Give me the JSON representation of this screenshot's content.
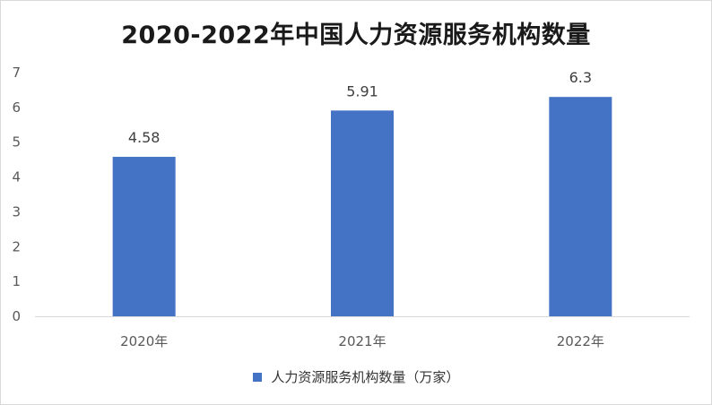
{
  "chart_data": {
    "type": "bar",
    "title": "2020-2022年中国人力资源服务机构数量",
    "categories": [
      "2020年",
      "2021年",
      "2022年"
    ],
    "series": [
      {
        "name": "人力资源服务机构数量（万家）",
        "values": [
          4.58,
          5.91,
          6.3
        ],
        "data_labels": [
          "4.58",
          "5.91",
          "6.3"
        ],
        "color": "#4472c4"
      }
    ],
    "ylim": [
      0,
      7
    ],
    "yticks": [
      0,
      1,
      2,
      3,
      4,
      5,
      6,
      7
    ],
    "grid": false,
    "legend_position": "bottom"
  }
}
